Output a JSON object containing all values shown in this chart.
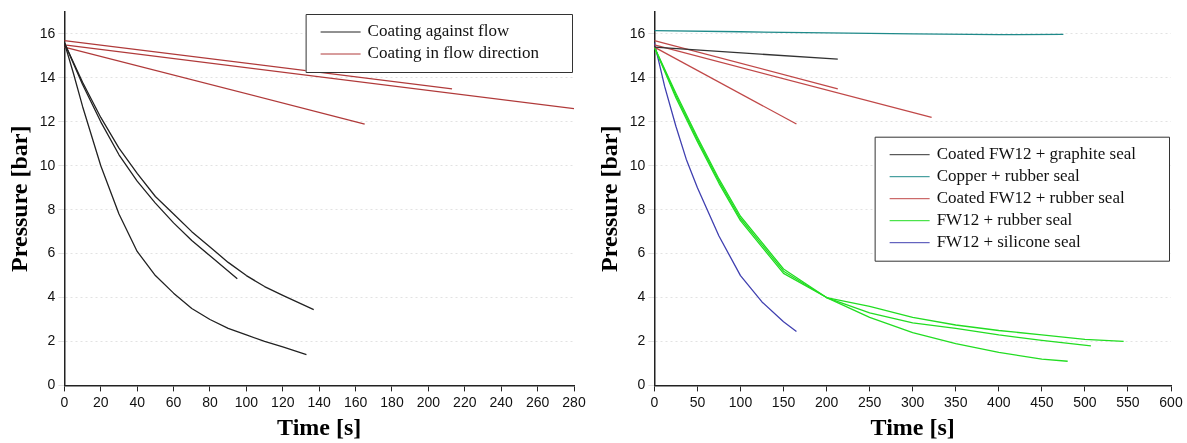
{
  "chart_data": [
    {
      "type": "line",
      "xlabel": "Time [s]",
      "ylabel": "Pressure [bar]",
      "xlim": [
        0,
        280
      ],
      "xticks": [
        0,
        20,
        40,
        60,
        80,
        100,
        120,
        140,
        160,
        180,
        200,
        220,
        240,
        260,
        280
      ],
      "ylim": [
        0,
        17
      ],
      "yticks": [
        0,
        2,
        4,
        6,
        8,
        10,
        12,
        14,
        16
      ],
      "grid": "y",
      "legend": "top right",
      "marker": "none",
      "line_style": "solid",
      "series": [
        {
          "name": "Coating against flow",
          "color": "#222222",
          "x": [
            0,
            5,
            10,
            20,
            30,
            40,
            50,
            60,
            70,
            80,
            90,
            100,
            110,
            120,
            133
          ],
          "values": [
            15.6,
            14.2,
            12.7,
            10.0,
            7.8,
            6.1,
            5.0,
            4.2,
            3.5,
            3.0,
            2.6,
            2.3,
            2.0,
            1.75,
            1.4
          ]
        },
        {
          "color": "#222222",
          "x": [
            0,
            10,
            20,
            30,
            40,
            50,
            60,
            70,
            80,
            95
          ],
          "values": [
            15.6,
            13.7,
            12.0,
            10.5,
            9.3,
            8.3,
            7.4,
            6.6,
            5.9,
            4.85
          ]
        },
        {
          "color": "#222222",
          "x": [
            0,
            10,
            20,
            30,
            40,
            50,
            60,
            70,
            80,
            90,
            100,
            110,
            120,
            137
          ],
          "values": [
            15.6,
            13.8,
            12.2,
            10.8,
            9.65,
            8.6,
            7.8,
            7.0,
            6.3,
            5.6,
            5.0,
            4.5,
            4.1,
            3.45
          ]
        },
        {
          "name": "Coating in flow direction",
          "color": "#b03a3a",
          "x": [
            0,
            213
          ],
          "values": [
            15.7,
            13.5
          ]
        },
        {
          "color": "#b03a3a",
          "x": [
            0,
            280
          ],
          "values": [
            15.5,
            12.6
          ]
        },
        {
          "color": "#b03a3a",
          "x": [
            0,
            165
          ],
          "values": [
            15.4,
            11.9
          ]
        }
      ]
    },
    {
      "type": "line",
      "xlabel": "Time [s]",
      "ylabel": "Pressure [bar]",
      "xlim": [
        0,
        600
      ],
      "xticks": [
        0,
        50,
        100,
        150,
        200,
        250,
        300,
        350,
        400,
        450,
        500,
        550,
        600
      ],
      "ylim": [
        0,
        17
      ],
      "yticks": [
        0,
        2,
        4,
        6,
        8,
        10,
        12,
        14,
        16
      ],
      "grid": "y",
      "legend": "right",
      "marker": "none",
      "line_style": "solid",
      "series": [
        {
          "name": "Coated FW12 + graphite seal",
          "color": "#333333",
          "x": [
            0,
            213
          ],
          "values": [
            15.4,
            14.85
          ]
        },
        {
          "name": "Copper + rubber seal",
          "color": "#1f8a8a",
          "x": [
            0,
            100,
            200,
            300,
            400,
            475
          ],
          "values": [
            16.15,
            16.1,
            16.05,
            16.0,
            15.97,
            15.98
          ]
        },
        {
          "name": "Coated FW12 + rubber seal",
          "color": "#c04848",
          "x": [
            0,
            213
          ],
          "values": [
            15.7,
            13.5
          ]
        },
        {
          "color": "#c04848",
          "x": [
            0,
            322
          ],
          "values": [
            15.5,
            12.2
          ]
        },
        {
          "color": "#c04848",
          "x": [
            0,
            165
          ],
          "values": [
            15.4,
            11.9
          ]
        },
        {
          "name": "FW12 + rubber seal",
          "color": "#22dd22",
          "x": [
            0,
            25,
            50,
            75,
            100,
            150,
            200,
            250,
            300,
            350,
            400,
            450,
            480
          ],
          "values": [
            15.4,
            13.1,
            11.1,
            9.2,
            7.5,
            5.1,
            4.0,
            3.1,
            2.4,
            1.9,
            1.5,
            1.2,
            1.1
          ]
        },
        {
          "color": "#22dd22",
          "x": [
            0,
            25,
            50,
            75,
            100,
            150,
            200,
            250,
            300,
            350,
            400,
            450,
            507
          ],
          "values": [
            15.4,
            13.2,
            11.2,
            9.3,
            7.6,
            5.2,
            4.0,
            3.3,
            2.85,
            2.6,
            2.3,
            2.05,
            1.8
          ]
        },
        {
          "color": "#22dd22",
          "x": [
            0,
            25,
            50,
            75,
            100,
            150,
            200,
            250,
            300,
            350,
            400,
            450,
            500,
            545
          ],
          "values": [
            15.4,
            13.3,
            11.3,
            9.4,
            7.7,
            5.3,
            4.0,
            3.6,
            3.1,
            2.75,
            2.5,
            2.3,
            2.1,
            2.0
          ]
        },
        {
          "name": "FW12 + silicone seal",
          "color": "#4040b0",
          "x": [
            0,
            12,
            25,
            37,
            50,
            75,
            100,
            125,
            150,
            165
          ],
          "values": [
            15.6,
            13.6,
            11.8,
            10.3,
            9.0,
            6.8,
            5.0,
            3.8,
            2.9,
            2.45
          ]
        }
      ]
    }
  ]
}
